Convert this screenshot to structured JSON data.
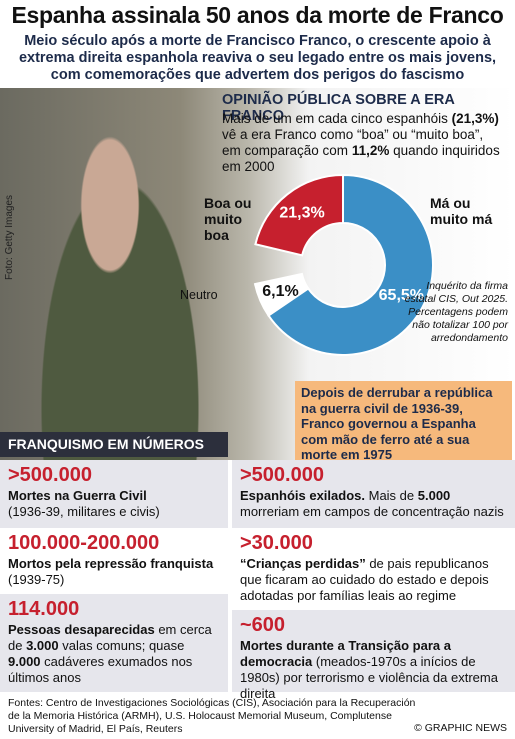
{
  "header": {
    "title": "Espanha assinala 50 anos da morte de Franco",
    "subtitle": "Meio século após a morte de Francisco Franco, o crescente apoio à extrema direita espanhola reaviva o seu legado entre os mais jovens, com comemorações que advertem dos perigos do fascismo"
  },
  "photo_credit": "Foto: Getty Images",
  "chart_data": {
    "type": "donut",
    "title": "OPINIÃO PÚBLICA SOBRE A ERA FRANCO",
    "description": [
      "Mais de um em cada cinco espanhóis ",
      "(21,3%)",
      " vê a era Franco como “boa” ou “muito boa”, em comparação com ",
      "11,2%",
      " quando inquiridos em 2000"
    ],
    "categories": [
      "Boa ou muito boa",
      "Neutro",
      "Má ou muito má"
    ],
    "values": [
      21.3,
      6.1,
      65.5
    ],
    "value_labels": [
      "21,3%",
      "6,1%",
      "65,5%"
    ],
    "colors": [
      "#c6202e",
      "#ffffff",
      "#3b8fc6"
    ],
    "note": "Inquérito da firma estatal CIS, Out 2025. Percentagens podem não totalizar 100 por arredondamento"
  },
  "callout": "Depois de derrubar a república na guerra civil de 1936-39, Franco governou a Espanha com mão de ferro até a sua morte em 1975",
  "stats_title": "FRANQUISMO EM NÚMEROS",
  "stats": [
    {
      "number": ">500.000",
      "text": [
        "Mortes na Guerra Civil",
        "(1936-39, militares e civis)"
      ]
    },
    {
      "number": "100.000-200.000",
      "text": [
        "Mortos pela repressão franquista",
        " (1939-75)"
      ]
    },
    {
      "number": "114.000",
      "text": [
        "Pessoas desaparecidas",
        " em cerca de ",
        "3.000",
        " valas comuns; quase ",
        "9.000",
        " cadáveres exumados nos últimos anos"
      ]
    },
    {
      "number": ">500.000",
      "text": [
        "Espanhóis exilados.",
        " Mais de ",
        "5.000",
        " morreriam em campos de concentração nazis"
      ]
    },
    {
      "number": ">30.000",
      "text": [
        "“Crianças perdidas”",
        " de pais republicanos que ficaram ao cuidado do estado e depois adotadas por famílias leais ao regime"
      ]
    },
    {
      "number": "~600",
      "text": [
        "Mortes durante a Transição para a democracia",
        " (meados-1970s a inícios de 1980s) por terrorismo e violência da extrema direita"
      ]
    }
  ],
  "footer": {
    "sources": "Fontes: Centro de Investigaciones Sociológicas (CIS), Asociación para la Recuperación de la Memoria Histórica (ARMH), U.S. Holocaust Memorial Museum, Complutense University of Madrid, El País, Reuters",
    "copyright": "© GRAPHIC NEWS"
  }
}
